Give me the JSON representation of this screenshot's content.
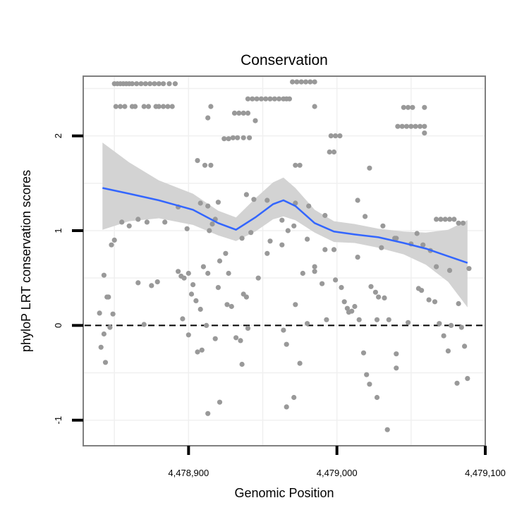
{
  "chart_data": {
    "type": "scatter",
    "title": "Conservation",
    "xlabel": "Genomic Position",
    "ylabel": "phyloP LRT conservation scores",
    "xlim": [
      4478829,
      4479100
    ],
    "ylim": [
      -1.27,
      2.63
    ],
    "x_ticks": [
      {
        "value": 4478900,
        "label": "4,478,900"
      },
      {
        "value": 4479000,
        "label": "4,479,000"
      },
      {
        "value": 4479100,
        "label": "4,479,100"
      }
    ],
    "y_ticks": [
      {
        "value": -1,
        "label": "-1"
      },
      {
        "value": 0,
        "label": "0"
      },
      {
        "value": 1,
        "label": "1"
      },
      {
        "value": 2,
        "label": "2"
      }
    ],
    "reference_line": {
      "y": 0,
      "style": "dashed"
    },
    "colors": {
      "points": "#999999",
      "smooth": "#3366ff",
      "ribbon": "#d3d3d3",
      "frame": "#7f7f7f",
      "grid": "#f0f0f0"
    },
    "smooth": {
      "method": "loess",
      "x": [
        4478842,
        4478860,
        4478880,
        4478903,
        4478920,
        4478932,
        4478945,
        4478957,
        4478964,
        4478972,
        4478985,
        4478998,
        4479012,
        4479028,
        4479045,
        4479060,
        4479075,
        4479088
      ],
      "y": [
        1.45,
        1.39,
        1.32,
        1.22,
        1.08,
        1.01,
        1.14,
        1.28,
        1.32,
        1.26,
        1.08,
        0.99,
        0.96,
        0.93,
        0.87,
        0.81,
        0.73,
        0.66
      ],
      "lower": [
        1.01,
        1.1,
        1.13,
        1.06,
        0.95,
        0.89,
        0.99,
        1.12,
        1.15,
        1.11,
        0.98,
        0.88,
        0.87,
        0.82,
        0.75,
        0.64,
        0.46,
        0.19
      ],
      "upper": [
        1.93,
        1.72,
        1.53,
        1.39,
        1.21,
        1.14,
        1.34,
        1.51,
        1.56,
        1.45,
        1.22,
        1.1,
        1.07,
        1.02,
        0.99,
        0.98,
        1.01,
        1.11
      ]
    },
    "points": [
      {
        "x": 4478850,
        "y": 2.55
      },
      {
        "x": 4478852,
        "y": 2.55
      },
      {
        "x": 4478854,
        "y": 2.55
      },
      {
        "x": 4478856,
        "y": 2.55
      },
      {
        "x": 4478858,
        "y": 2.55
      },
      {
        "x": 4478860,
        "y": 2.55
      },
      {
        "x": 4478862,
        "y": 2.55
      },
      {
        "x": 4478865,
        "y": 2.55
      },
      {
        "x": 4478868,
        "y": 2.55
      },
      {
        "x": 4478871,
        "y": 2.55
      },
      {
        "x": 4478874,
        "y": 2.55
      },
      {
        "x": 4478877,
        "y": 2.55
      },
      {
        "x": 4478880,
        "y": 2.55
      },
      {
        "x": 4478883,
        "y": 2.55
      },
      {
        "x": 4478887,
        "y": 2.55
      },
      {
        "x": 4478891,
        "y": 2.55
      },
      {
        "x": 4478851,
        "y": 2.31
      },
      {
        "x": 4478854,
        "y": 2.31
      },
      {
        "x": 4478857,
        "y": 2.31
      },
      {
        "x": 4478862,
        "y": 2.31
      },
      {
        "x": 4478864,
        "y": 2.31
      },
      {
        "x": 4478870,
        "y": 2.31
      },
      {
        "x": 4478873,
        "y": 2.31
      },
      {
        "x": 4478878,
        "y": 2.31
      },
      {
        "x": 4478880,
        "y": 2.31
      },
      {
        "x": 4478883,
        "y": 2.31
      },
      {
        "x": 4478886,
        "y": 2.31
      },
      {
        "x": 4478889,
        "y": 2.31
      },
      {
        "x": 4478970,
        "y": 2.57
      },
      {
        "x": 4478973,
        "y": 2.57
      },
      {
        "x": 4478976,
        "y": 2.57
      },
      {
        "x": 4478979,
        "y": 2.57
      },
      {
        "x": 4478982,
        "y": 2.57
      },
      {
        "x": 4478985,
        "y": 2.57
      },
      {
        "x": 4478940,
        "y": 2.39
      },
      {
        "x": 4478943,
        "y": 2.39
      },
      {
        "x": 4478946,
        "y": 2.39
      },
      {
        "x": 4478949,
        "y": 2.39
      },
      {
        "x": 4478952,
        "y": 2.39
      },
      {
        "x": 4478955,
        "y": 2.39
      },
      {
        "x": 4478958,
        "y": 2.39
      },
      {
        "x": 4478961,
        "y": 2.39
      },
      {
        "x": 4478964,
        "y": 2.39
      },
      {
        "x": 4478966,
        "y": 2.39
      },
      {
        "x": 4478968,
        "y": 2.39
      },
      {
        "x": 4478931,
        "y": 2.24
      },
      {
        "x": 4478934,
        "y": 2.24
      },
      {
        "x": 4478937,
        "y": 2.24
      },
      {
        "x": 4478940,
        "y": 2.24
      },
      {
        "x": 4478930,
        "y": 1.98
      },
      {
        "x": 4478933,
        "y": 1.98
      },
      {
        "x": 4478937,
        "y": 1.98
      },
      {
        "x": 4478941,
        "y": 1.98
      },
      {
        "x": 4478924,
        "y": 1.97
      },
      {
        "x": 4478927,
        "y": 1.97
      },
      {
        "x": 4478996,
        "y": 2.0
      },
      {
        "x": 4478999,
        "y": 2.0
      },
      {
        "x": 4479002,
        "y": 2.0
      },
      {
        "x": 4478995,
        "y": 1.83
      },
      {
        "x": 4478998,
        "y": 1.83
      },
      {
        "x": 4478972,
        "y": 1.69
      },
      {
        "x": 4478975,
        "y": 1.69
      },
      {
        "x": 4479045,
        "y": 2.3
      },
      {
        "x": 4479048,
        "y": 2.3
      },
      {
        "x": 4479051,
        "y": 2.3
      },
      {
        "x": 4479059,
        "y": 2.3
      },
      {
        "x": 4479041,
        "y": 2.1
      },
      {
        "x": 4479044,
        "y": 2.1
      },
      {
        "x": 4479047,
        "y": 2.1
      },
      {
        "x": 4479050,
        "y": 2.1
      },
      {
        "x": 4479053,
        "y": 2.1
      },
      {
        "x": 4479056,
        "y": 2.1
      },
      {
        "x": 4479059,
        "y": 2.1
      },
      {
        "x": 4478915,
        "y": 2.31
      },
      {
        "x": 4478985,
        "y": 2.31
      },
      {
        "x": 4478945,
        "y": 2.16
      },
      {
        "x": 4478913,
        "y": 2.19
      },
      {
        "x": 4479059,
        "y": 2.03
      },
      {
        "x": 4478906,
        "y": 1.74
      },
      {
        "x": 4478911,
        "y": 1.69
      },
      {
        "x": 4478915,
        "y": 1.69
      },
      {
        "x": 4479022,
        "y": 1.66
      },
      {
        "x": 4478916,
        "y": 1.07
      },
      {
        "x": 4478908,
        "y": 1.29
      },
      {
        "x": 4478914,
        "y": 1.0
      },
      {
        "x": 4478918,
        "y": 1.12
      },
      {
        "x": 4478913,
        "y": 1.26
      },
      {
        "x": 4478920,
        "y": 1.3
      },
      {
        "x": 4478939,
        "y": 1.38
      },
      {
        "x": 4478944,
        "y": 1.33
      },
      {
        "x": 4478953,
        "y": 1.32
      },
      {
        "x": 4478963,
        "y": 1.11
      },
      {
        "x": 4478967,
        "y": 1.0
      },
      {
        "x": 4478972,
        "y": 1.29
      },
      {
        "x": 4478981,
        "y": 1.26
      },
      {
        "x": 4478992,
        "y": 1.16
      },
      {
        "x": 4479014,
        "y": 1.32
      },
      {
        "x": 4479019,
        "y": 1.15
      },
      {
        "x": 4479031,
        "y": 1.05
      },
      {
        "x": 4479039,
        "y": 0.92
      },
      {
        "x": 4479054,
        "y": 0.97
      },
      {
        "x": 4479058,
        "y": 0.85
      },
      {
        "x": 4479067,
        "y": 1.12
      },
      {
        "x": 4479070,
        "y": 1.12
      },
      {
        "x": 4479073,
        "y": 1.12
      },
      {
        "x": 4479076,
        "y": 1.12
      },
      {
        "x": 4479079,
        "y": 1.12
      },
      {
        "x": 4479082,
        "y": 1.08
      },
      {
        "x": 4479085,
        "y": 1.08
      },
      {
        "x": 4478848,
        "y": 0.85
      },
      {
        "x": 4478850,
        "y": 0.9
      },
      {
        "x": 4478855,
        "y": 1.09
      },
      {
        "x": 4478860,
        "y": 1.05
      },
      {
        "x": 4478866,
        "y": 1.12
      },
      {
        "x": 4478872,
        "y": 1.09
      },
      {
        "x": 4478884,
        "y": 1.09
      },
      {
        "x": 4478893,
        "y": 1.25
      },
      {
        "x": 4478899,
        "y": 1.02
      },
      {
        "x": 4478910,
        "y": 0.62
      },
      {
        "x": 4478925,
        "y": 0.76
      },
      {
        "x": 4478921,
        "y": 0.68
      },
      {
        "x": 4478927,
        "y": 0.55
      },
      {
        "x": 4478936,
        "y": 0.92
      },
      {
        "x": 4478942,
        "y": 0.98
      },
      {
        "x": 4478955,
        "y": 0.89
      },
      {
        "x": 4478963,
        "y": 0.85
      },
      {
        "x": 4478971,
        "y": 1.05
      },
      {
        "x": 4478980,
        "y": 0.91
      },
      {
        "x": 4478985,
        "y": 0.62
      },
      {
        "x": 4478992,
        "y": 0.8
      },
      {
        "x": 4478998,
        "y": 0.8
      },
      {
        "x": 4479014,
        "y": 0.72
      },
      {
        "x": 4479030,
        "y": 0.82
      },
      {
        "x": 4479040,
        "y": 0.92
      },
      {
        "x": 4479050,
        "y": 0.86
      },
      {
        "x": 4479063,
        "y": 0.79
      },
      {
        "x": 4479067,
        "y": 0.62
      },
      {
        "x": 4479076,
        "y": 0.58
      },
      {
        "x": 4478840,
        "y": 0.13
      },
      {
        "x": 4478843,
        "y": 0.53
      },
      {
        "x": 4478845,
        "y": 0.3
      },
      {
        "x": 4478846,
        "y": 0.3
      },
      {
        "x": 4478849,
        "y": 0.12
      },
      {
        "x": 4478843,
        "y": -0.09
      },
      {
        "x": 4478841,
        "y": -0.23
      },
      {
        "x": 4478844,
        "y": -0.39
      },
      {
        "x": 4478847,
        "y": -0.02
      },
      {
        "x": 4478866,
        "y": 0.45
      },
      {
        "x": 4478875,
        "y": 0.42
      },
      {
        "x": 4478879,
        "y": 0.46
      },
      {
        "x": 4478870,
        "y": 0.01
      },
      {
        "x": 4478893,
        "y": 0.57
      },
      {
        "x": 4478895,
        "y": 0.52
      },
      {
        "x": 4478897,
        "y": 0.5
      },
      {
        "x": 4478900,
        "y": 0.55
      },
      {
        "x": 4478903,
        "y": 0.43
      },
      {
        "x": 4478902,
        "y": 0.33
      },
      {
        "x": 4478905,
        "y": 0.26
      },
      {
        "x": 4478896,
        "y": 0.07
      },
      {
        "x": 4478900,
        "y": -0.1
      },
      {
        "x": 4478908,
        "y": 0.17
      },
      {
        "x": 4478906,
        "y": -0.28
      },
      {
        "x": 4478913,
        "y": 0.55
      },
      {
        "x": 4478918,
        "y": -0.14
      },
      {
        "x": 4478920,
        "y": 0.4
      },
      {
        "x": 4478926,
        "y": 0.22
      },
      {
        "x": 4478929,
        "y": 0.2
      },
      {
        "x": 4478932,
        "y": -0.13
      },
      {
        "x": 4478935,
        "y": -0.16
      },
      {
        "x": 4478937,
        "y": 0.33
      },
      {
        "x": 4478939,
        "y": 0.3
      },
      {
        "x": 4478940,
        "y": -0.03
      },
      {
        "x": 4478936,
        "y": -0.41
      },
      {
        "x": 4478947,
        "y": 0.5
      },
      {
        "x": 4478964,
        "y": -0.05
      },
      {
        "x": 4478966,
        "y": -0.2
      },
      {
        "x": 4478972,
        "y": 0.22
      },
      {
        "x": 4478977,
        "y": 0.55
      },
      {
        "x": 4478980,
        "y": 0.02
      },
      {
        "x": 4478975,
        "y": -0.4
      },
      {
        "x": 4478985,
        "y": 0.57
      },
      {
        "x": 4478990,
        "y": 0.44
      },
      {
        "x": 4478993,
        "y": 0.06
      },
      {
        "x": 4478999,
        "y": 0.48
      },
      {
        "x": 4479003,
        "y": 0.4
      },
      {
        "x": 4479005,
        "y": 0.25
      },
      {
        "x": 4479007,
        "y": 0.18
      },
      {
        "x": 4479008,
        "y": 0.14
      },
      {
        "x": 4479010,
        "y": 0.15
      },
      {
        "x": 4479012,
        "y": 0.2
      },
      {
        "x": 4479015,
        "y": 0.06
      },
      {
        "x": 4479018,
        "y": -0.29
      },
      {
        "x": 4479023,
        "y": 0.41
      },
      {
        "x": 4479026,
        "y": 0.35
      },
      {
        "x": 4479028,
        "y": 0.3
      },
      {
        "x": 4479032,
        "y": 0.29
      },
      {
        "x": 4479027,
        "y": 0.06
      },
      {
        "x": 4479035,
        "y": 0.06
      },
      {
        "x": 4479040,
        "y": -0.3
      },
      {
        "x": 4479040,
        "y": -0.45
      },
      {
        "x": 4479020,
        "y": -0.52
      },
      {
        "x": 4479022,
        "y": -0.62
      },
      {
        "x": 4479027,
        "y": -0.76
      },
      {
        "x": 4479034,
        "y": -1.1
      },
      {
        "x": 4479048,
        "y": 0.03
      },
      {
        "x": 4479055,
        "y": 0.39
      },
      {
        "x": 4479057,
        "y": 0.37
      },
      {
        "x": 4479062,
        "y": 0.27
      },
      {
        "x": 4479066,
        "y": 0.25
      },
      {
        "x": 4479069,
        "y": 0.02
      },
      {
        "x": 4479072,
        "y": -0.11
      },
      {
        "x": 4479075,
        "y": -0.27
      },
      {
        "x": 4479077,
        "y": 0.0
      },
      {
        "x": 4479081,
        "y": -0.61
      },
      {
        "x": 4479084,
        "y": -0.02
      },
      {
        "x": 4479086,
        "y": -0.22
      },
      {
        "x": 4479088,
        "y": -0.56
      },
      {
        "x": 4479089,
        "y": 0.6
      },
      {
        "x": 4479082,
        "y": 0.23
      },
      {
        "x": 4478909,
        "y": -0.26
      },
      {
        "x": 4478912,
        "y": 0.0
      },
      {
        "x": 4478913,
        "y": -0.93
      },
      {
        "x": 4478921,
        "y": -0.81
      },
      {
        "x": 4478966,
        "y": -0.86
      },
      {
        "x": 4478971,
        "y": -0.76
      },
      {
        "x": 4478953,
        "y": 0.76
      }
    ]
  }
}
